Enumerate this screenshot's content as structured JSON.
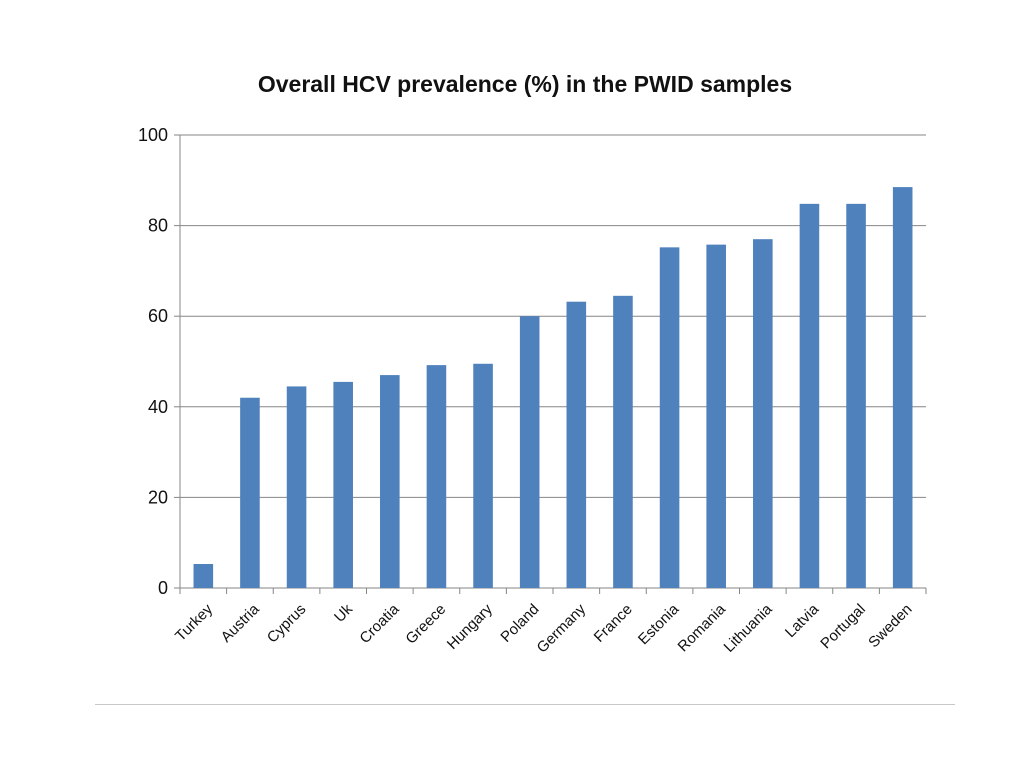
{
  "chart_data": {
    "type": "bar",
    "title": "Overall HCV prevalence (%) in the PWID samples",
    "xlabel": "",
    "ylabel": "",
    "ylim": [
      0,
      100
    ],
    "yticks": [
      0,
      20,
      40,
      60,
      80,
      100
    ],
    "grid": true,
    "legend": "none",
    "bar_color": "#4f81bd",
    "categories": [
      "Turkey",
      "Austria",
      "Cyprus",
      "Uk",
      "Croatia",
      "Greece",
      "Hungary",
      "Poland",
      "Germany",
      "France",
      "Estonia",
      "Romania",
      "Lithuania",
      "Latvia",
      "Portugal",
      "Sweden"
    ],
    "values": [
      5.3,
      42,
      44.5,
      45.5,
      47,
      49.2,
      49.5,
      60,
      63.2,
      64.5,
      75.2,
      75.8,
      77,
      84.8,
      84.8,
      88.5
    ]
  }
}
